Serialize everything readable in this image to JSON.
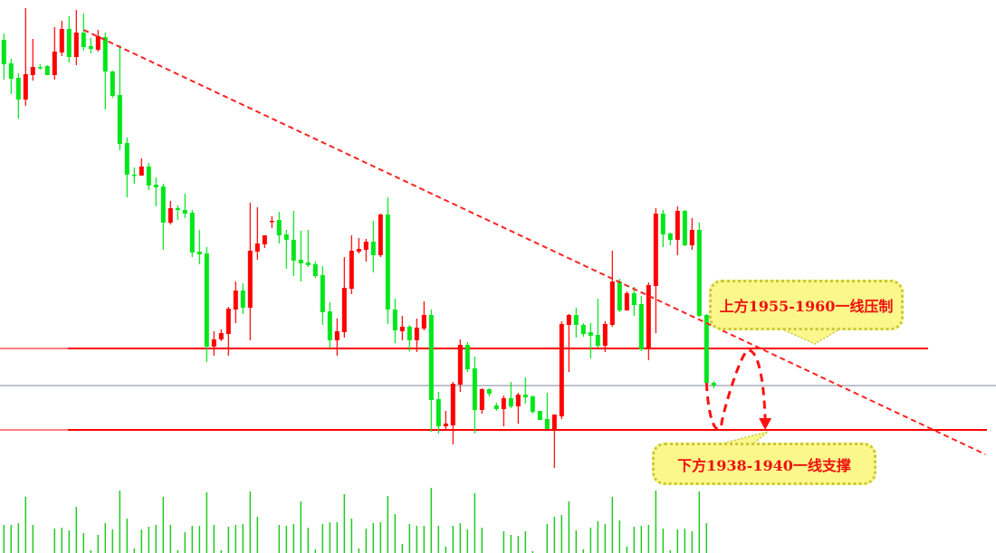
{
  "chart_data": {
    "type": "candlestick",
    "title": "",
    "xlabel": "",
    "ylabel": "",
    "ylim": [
      1912,
      2034
    ],
    "grid": false,
    "colors": {
      "up": "#ff0000",
      "down": "#00e61a",
      "volume": "#22cc22",
      "level_line": "#ff0000",
      "current_price_line": "#7a8a99",
      "trendline": "#ff2222",
      "callout_fill": "#fbf78a",
      "callout_text": "#ee1111"
    },
    "candles_ohlc": [
      [
        2025.2,
        2026.6,
        2016.4,
        2019.8
      ],
      [
        2020.0,
        2021.0,
        2013.2,
        2016.6
      ],
      [
        2016.8,
        2017.8,
        2007.8,
        2012.0
      ],
      [
        2012.0,
        2032.2,
        2010.6,
        2017.6
      ],
      [
        2017.4,
        2025.4,
        2016.2,
        2019.2
      ],
      [
        2019.2,
        2019.8,
        2018.6,
        2019.0
      ],
      [
        2019.4,
        2019.6,
        2017.4,
        2017.4
      ],
      [
        2017.4,
        2028.0,
        2016.4,
        2022.6
      ],
      [
        2022.4,
        2029.4,
        2021.6,
        2027.6
      ],
      [
        2027.6,
        2030.4,
        2020.2,
        2021.4
      ],
      [
        2021.4,
        2031.8,
        2019.6,
        2026.8
      ],
      [
        2026.8,
        2031.0,
        2022.8,
        2023.6
      ],
      [
        2023.8,
        2025.6,
        2022.2,
        2023.2
      ],
      [
        2023.0,
        2027.4,
        2022.6,
        2026.0
      ],
      [
        2025.8,
        2026.8,
        2009.8,
        2018.2
      ],
      [
        2018.2,
        2018.4,
        2012.4,
        2012.8
      ],
      [
        2013.0,
        2024.0,
        2000.8,
        2002.2
      ],
      [
        2002.4,
        2003.6,
        1990.4,
        1995.4
      ],
      [
        1995.4,
        1997.0,
        1993.4,
        1995.2
      ],
      [
        1995.2,
        1999.0,
        1995.2,
        1997.2
      ],
      [
        1997.2,
        1998.0,
        1992.0,
        1993.0
      ],
      [
        1993.2,
        1994.8,
        1988.4,
        1992.6
      ],
      [
        1992.8,
        1993.4,
        1978.8,
        1984.8
      ],
      [
        1984.8,
        1989.6,
        1984.4,
        1988.0
      ],
      [
        1988.0,
        1988.6,
        1985.4,
        1987.6
      ],
      [
        1987.6,
        1991.2,
        1985.8,
        1986.8
      ],
      [
        1987.0,
        1987.6,
        1977.2,
        1978.2
      ],
      [
        1978.4,
        1983.2,
        1975.6,
        1977.8
      ],
      [
        1978.0,
        1979.4,
        1954.0,
        1957.4
      ],
      [
        1957.4,
        1960.8,
        1955.4,
        1959.0
      ],
      [
        1959.0,
        1961.2,
        1958.6,
        1960.4
      ],
      [
        1960.2,
        1966.2,
        1955.4,
        1965.8
      ],
      [
        1965.6,
        1971.8,
        1962.6,
        1969.8
      ],
      [
        1969.8,
        1971.4,
        1964.6,
        1966.0
      ],
      [
        1966.0,
        1989.2,
        1958.8,
        1978.6
      ],
      [
        1978.4,
        1988.2,
        1976.6,
        1980.2
      ],
      [
        1980.0,
        1982.0,
        1979.2,
        1982.0
      ],
      [
        1985.0,
        1986.2,
        1983.6,
        1985.2
      ],
      [
        1985.4,
        1987.2,
        1980.2,
        1982.0
      ],
      [
        1982.2,
        1983.2,
        1974.6,
        1981.0
      ],
      [
        1981.0,
        1987.4,
        1973.0,
        1976.4
      ],
      [
        1976.6,
        1983.0,
        1971.8,
        1975.8
      ],
      [
        1976.0,
        1983.2,
        1975.0,
        1975.4
      ],
      [
        1975.6,
        1976.2,
        1972.6,
        1973.0
      ],
      [
        1973.2,
        1975.2,
        1962.2,
        1965.0
      ],
      [
        1965.2,
        1967.2,
        1957.0,
        1958.8
      ],
      [
        1958.8,
        1963.6,
        1955.4,
        1960.8
      ],
      [
        1960.6,
        1977.2,
        1959.4,
        1970.4
      ],
      [
        1970.2,
        1982.0,
        1969.0,
        1978.6
      ],
      [
        1978.4,
        1981.4,
        1978.0,
        1979.0
      ],
      [
        1978.8,
        1981.2,
        1976.2,
        1980.6
      ],
      [
        1980.6,
        1985.2,
        1973.8,
        1977.6
      ],
      [
        1977.6,
        1986.8,
        1977.2,
        1986.6
      ],
      [
        1986.6,
        1990.4,
        1962.4,
        1965.6
      ],
      [
        1965.6,
        1968.0,
        1958.2,
        1961.0
      ],
      [
        1960.8,
        1964.2,
        1958.8,
        1961.8
      ],
      [
        1961.8,
        1962.2,
        1956.4,
        1958.8
      ],
      [
        1958.8,
        1963.6,
        1956.2,
        1961.6
      ],
      [
        1961.4,
        1967.4,
        1961.0,
        1964.4
      ],
      [
        1964.4,
        1965.6,
        1938.6,
        1945.6
      ],
      [
        1945.8,
        1947.4,
        1938.2,
        1939.8
      ],
      [
        1939.8,
        1943.2,
        1939.2,
        1940.4
      ],
      [
        1940.0,
        1949.6,
        1935.8,
        1949.2
      ],
      [
        1949.0,
        1959.0,
        1947.4,
        1957.8
      ],
      [
        1957.8,
        1958.4,
        1951.8,
        1952.4
      ],
      [
        1952.6,
        1955.2,
        1938.2,
        1943.4
      ],
      [
        1943.4,
        1948.2,
        1942.6,
        1948.0
      ],
      [
        1948.0,
        1948.2,
        1946.4,
        1947.0
      ],
      [
        1944.4,
        1945.0,
        1943.2,
        1943.6
      ],
      [
        1943.6,
        1946.6,
        1939.8,
        1946.0
      ],
      [
        1946.0,
        1949.6,
        1943.8,
        1944.2
      ],
      [
        1944.2,
        1947.2,
        1940.4,
        1946.8
      ],
      [
        1946.8,
        1950.6,
        1944.8,
        1946.2
      ],
      [
        1946.4,
        1946.6,
        1942.6,
        1943.0
      ],
      [
        1943.2,
        1943.2,
        1941.2,
        1941.2
      ],
      [
        1941.4,
        1947.2,
        1939.2,
        1939.2
      ],
      [
        1939.2,
        1942.4,
        1930.6,
        1942.4
      ],
      [
        1942.0,
        1963.0,
        1941.4,
        1962.4
      ],
      [
        1962.2,
        1964.6,
        1951.8,
        1964.4
      ],
      [
        1964.4,
        1966.0,
        1959.4,
        1962.2
      ],
      [
        1962.2,
        1962.6,
        1959.6,
        1960.2
      ],
      [
        1960.6,
        1962.6,
        1954.8,
        1959.8
      ],
      [
        1960.0,
        1968.0,
        1957.2,
        1957.6
      ],
      [
        1957.6,
        1963.0,
        1956.2,
        1962.4
      ],
      [
        1962.2,
        1978.6,
        1961.8,
        1971.8
      ],
      [
        1971.8,
        1972.4,
        1965.0,
        1965.4
      ],
      [
        1965.4,
        1969.6,
        1965.4,
        1969.2
      ],
      [
        1969.2,
        1970.6,
        1964.2,
        1966.6
      ],
      [
        1966.8,
        1968.6,
        1956.4,
        1956.8
      ],
      [
        1956.8,
        1971.6,
        1954.4,
        1971.0
      ],
      [
        1970.8,
        1988.0,
        1960.4,
        1986.8
      ],
      [
        1986.8,
        1987.6,
        1979.4,
        1982.2
      ],
      [
        1982.4,
        1982.6,
        1979.8,
        1981.0
      ],
      [
        1981.0,
        1988.4,
        1977.6,
        1987.4
      ],
      [
        1987.4,
        1987.6,
        1979.6,
        1979.8
      ],
      [
        1979.8,
        1985.8,
        1978.8,
        1983.2
      ],
      [
        1983.2,
        1984.8,
        1964.0,
        1964.2
      ],
      [
        1964.4,
        1964.6,
        1949.2,
        1949.4
      ],
      [
        1949.4,
        1949.8,
        1948.2,
        1948.8
      ]
    ],
    "volume": [
      93,
      93,
      99,
      186,
      93,
      0,
      0,
      81,
      84,
      75,
      153,
      66,
      9,
      60,
      99,
      78,
      207,
      114,
      15,
      78,
      87,
      93,
      186,
      93,
      9,
      69,
      90,
      90,
      201,
      93,
      9,
      87,
      93,
      96,
      204,
      120,
      0,
      0,
      93,
      90,
      96,
      171,
      84,
      12,
      96,
      102,
      102,
      195,
      114,
      15,
      81,
      99,
      102,
      189,
      129,
      30,
      96,
      90,
      90,
      216,
      90,
      21,
      90,
      99,
      78,
      198,
      84,
      0,
      0,
      72,
      60,
      57,
      72,
      6,
      0,
      96,
      120,
      126,
      171,
      75,
      12,
      84,
      105,
      96,
      186,
      108,
      21,
      87,
      90,
      93,
      207,
      81,
      9,
      78,
      81,
      72,
      204,
      99,
      0
    ],
    "horizontal_levels": [
      {
        "price": 1957,
        "role": "resistance"
      },
      {
        "price": 1939,
        "role": "support"
      }
    ],
    "current_price_line": 1948.8,
    "trendline": {
      "from": {
        "bar": 11,
        "price": 2027.4
      },
      "to": {
        "bar": 135.5,
        "price": 1933.6
      },
      "style": "dashed"
    },
    "projected_path": [
      {
        "bar": 97,
        "price": 1949.4
      },
      {
        "bar": 98.6,
        "price": 1939.4
      },
      {
        "bar": 102.8,
        "price": 1956.6
      },
      {
        "bar": 105.1,
        "price": 1939.0
      }
    ],
    "annotations": {
      "upper": "上方1955-1960一线压制",
      "lower": "下方1938-1940一线支撑"
    }
  }
}
